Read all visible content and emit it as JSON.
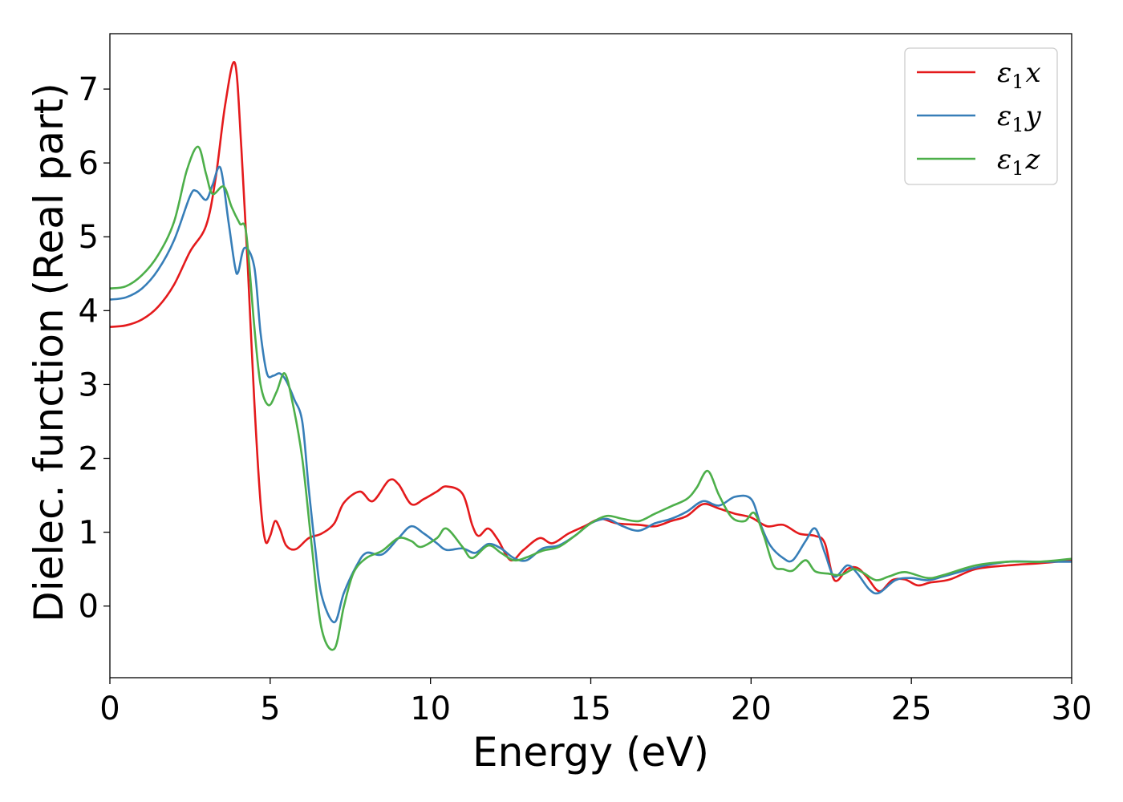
{
  "chart_data": {
    "type": "line",
    "title": "",
    "xlabel": "Energy (eV)",
    "ylabel": "Dielec. function (Real part)",
    "xlim": [
      0,
      30
    ],
    "ylim": [
      -0.97,
      7.75
    ],
    "xticks": [
      0,
      5,
      10,
      15,
      20,
      25,
      30
    ],
    "yticks": [
      0,
      1,
      2,
      3,
      4,
      5,
      6,
      7
    ],
    "grid": false,
    "legend_position": "top-right",
    "series": [
      {
        "name_base": "ε",
        "name_sub": "1",
        "name_var": "x",
        "color": "#e41a1c",
        "points": [
          [
            0,
            3.78
          ],
          [
            0.5,
            3.8
          ],
          [
            1,
            3.88
          ],
          [
            1.5,
            4.05
          ],
          [
            2,
            4.35
          ],
          [
            2.5,
            4.8
          ],
          [
            3,
            5.15
          ],
          [
            3.3,
            5.8
          ],
          [
            3.6,
            6.8
          ],
          [
            3.9,
            7.35
          ],
          [
            4.1,
            6.2
          ],
          [
            4.3,
            4.6
          ],
          [
            4.5,
            2.8
          ],
          [
            4.7,
            1.4
          ],
          [
            4.85,
            0.88
          ],
          [
            5,
            0.95
          ],
          [
            5.15,
            1.15
          ],
          [
            5.3,
            1.05
          ],
          [
            5.5,
            0.82
          ],
          [
            5.8,
            0.77
          ],
          [
            6.2,
            0.92
          ],
          [
            6.6,
            0.98
          ],
          [
            7,
            1.12
          ],
          [
            7.3,
            1.4
          ],
          [
            7.8,
            1.55
          ],
          [
            8.2,
            1.42
          ],
          [
            8.7,
            1.7
          ],
          [
            9,
            1.65
          ],
          [
            9.4,
            1.38
          ],
          [
            9.8,
            1.45
          ],
          [
            10.2,
            1.55
          ],
          [
            10.5,
            1.62
          ],
          [
            11,
            1.52
          ],
          [
            11.3,
            1.1
          ],
          [
            11.5,
            0.95
          ],
          [
            11.8,
            1.05
          ],
          [
            12.1,
            0.9
          ],
          [
            12.5,
            0.62
          ],
          [
            12.9,
            0.76
          ],
          [
            13.4,
            0.92
          ],
          [
            13.8,
            0.85
          ],
          [
            14.3,
            0.98
          ],
          [
            14.8,
            1.08
          ],
          [
            15.3,
            1.18
          ],
          [
            15.8,
            1.12
          ],
          [
            16.5,
            1.1
          ],
          [
            17,
            1.08
          ],
          [
            17.5,
            1.15
          ],
          [
            18,
            1.22
          ],
          [
            18.5,
            1.38
          ],
          [
            19,
            1.32
          ],
          [
            19.5,
            1.25
          ],
          [
            20,
            1.2
          ],
          [
            20.5,
            1.08
          ],
          [
            21,
            1.1
          ],
          [
            21.5,
            0.98
          ],
          [
            22,
            0.95
          ],
          [
            22.3,
            0.85
          ],
          [
            22.6,
            0.35
          ],
          [
            23,
            0.5
          ],
          [
            23.3,
            0.52
          ],
          [
            23.6,
            0.4
          ],
          [
            24,
            0.2
          ],
          [
            24.4,
            0.35
          ],
          [
            24.8,
            0.36
          ],
          [
            25.2,
            0.28
          ],
          [
            25.6,
            0.32
          ],
          [
            26.2,
            0.36
          ],
          [
            27,
            0.5
          ],
          [
            28,
            0.55
          ],
          [
            29,
            0.58
          ],
          [
            30,
            0.62
          ]
        ]
      },
      {
        "name_base": "ε",
        "name_sub": "1",
        "name_var": "y",
        "color": "#377eb8",
        "points": [
          [
            0,
            4.15
          ],
          [
            0.5,
            4.18
          ],
          [
            1,
            4.3
          ],
          [
            1.5,
            4.55
          ],
          [
            2,
            4.95
          ],
          [
            2.5,
            5.55
          ],
          [
            2.7,
            5.62
          ],
          [
            3,
            5.5
          ],
          [
            3.2,
            5.7
          ],
          [
            3.45,
            5.93
          ],
          [
            3.7,
            5.2
          ],
          [
            3.9,
            4.6
          ],
          [
            4,
            4.52
          ],
          [
            4.2,
            4.85
          ],
          [
            4.5,
            4.6
          ],
          [
            4.7,
            3.7
          ],
          [
            4.9,
            3.15
          ],
          [
            5.1,
            3.12
          ],
          [
            5.3,
            3.15
          ],
          [
            5.5,
            3.05
          ],
          [
            5.75,
            2.8
          ],
          [
            6,
            2.5
          ],
          [
            6.2,
            1.6
          ],
          [
            6.4,
            0.8
          ],
          [
            6.6,
            0.15
          ],
          [
            7,
            -0.22
          ],
          [
            7.3,
            0.18
          ],
          [
            7.7,
            0.55
          ],
          [
            8,
            0.72
          ],
          [
            8.5,
            0.7
          ],
          [
            9,
            0.92
          ],
          [
            9.4,
            1.08
          ],
          [
            9.8,
            0.98
          ],
          [
            10.2,
            0.85
          ],
          [
            10.5,
            0.76
          ],
          [
            11,
            0.78
          ],
          [
            11.4,
            0.72
          ],
          [
            11.8,
            0.84
          ],
          [
            12.2,
            0.78
          ],
          [
            12.6,
            0.65
          ],
          [
            13,
            0.62
          ],
          [
            13.5,
            0.78
          ],
          [
            14,
            0.82
          ],
          [
            14.5,
            0.95
          ],
          [
            15,
            1.12
          ],
          [
            15.5,
            1.18
          ],
          [
            16,
            1.08
          ],
          [
            16.5,
            1.02
          ],
          [
            17,
            1.12
          ],
          [
            17.5,
            1.18
          ],
          [
            18,
            1.28
          ],
          [
            18.5,
            1.42
          ],
          [
            19,
            1.36
          ],
          [
            19.5,
            1.48
          ],
          [
            20,
            1.45
          ],
          [
            20.3,
            1.1
          ],
          [
            20.6,
            0.82
          ],
          [
            21,
            0.65
          ],
          [
            21.3,
            0.62
          ],
          [
            21.7,
            0.88
          ],
          [
            22,
            1.05
          ],
          [
            22.3,
            0.72
          ],
          [
            22.6,
            0.4
          ],
          [
            23,
            0.55
          ],
          [
            23.3,
            0.45
          ],
          [
            23.7,
            0.22
          ],
          [
            24,
            0.18
          ],
          [
            24.5,
            0.35
          ],
          [
            25,
            0.38
          ],
          [
            25.5,
            0.35
          ],
          [
            26,
            0.4
          ],
          [
            27,
            0.52
          ],
          [
            28,
            0.6
          ],
          [
            29,
            0.6
          ],
          [
            30,
            0.6
          ]
        ]
      },
      {
        "name_base": "ε",
        "name_sub": "1",
        "name_var": "z",
        "color": "#4daf4a",
        "points": [
          [
            0,
            4.3
          ],
          [
            0.5,
            4.33
          ],
          [
            1,
            4.48
          ],
          [
            1.5,
            4.75
          ],
          [
            2,
            5.2
          ],
          [
            2.4,
            5.9
          ],
          [
            2.75,
            6.22
          ],
          [
            3,
            5.85
          ],
          [
            3.2,
            5.58
          ],
          [
            3.55,
            5.68
          ],
          [
            3.8,
            5.4
          ],
          [
            4.05,
            5.18
          ],
          [
            4.25,
            5.05
          ],
          [
            4.5,
            3.8
          ],
          [
            4.7,
            3.0
          ],
          [
            4.95,
            2.72
          ],
          [
            5.2,
            2.9
          ],
          [
            5.45,
            3.15
          ],
          [
            5.7,
            2.75
          ],
          [
            6,
            2.0
          ],
          [
            6.3,
            0.8
          ],
          [
            6.6,
            -0.3
          ],
          [
            7,
            -0.58
          ],
          [
            7.3,
            0.0
          ],
          [
            7.6,
            0.45
          ],
          [
            8,
            0.65
          ],
          [
            8.5,
            0.75
          ],
          [
            9,
            0.92
          ],
          [
            9.4,
            0.88
          ],
          [
            9.7,
            0.8
          ],
          [
            10.2,
            0.92
          ],
          [
            10.5,
            1.05
          ],
          [
            11,
            0.8
          ],
          [
            11.3,
            0.65
          ],
          [
            11.8,
            0.82
          ],
          [
            12.2,
            0.72
          ],
          [
            12.6,
            0.62
          ],
          [
            13,
            0.66
          ],
          [
            13.5,
            0.75
          ],
          [
            14,
            0.8
          ],
          [
            14.5,
            0.95
          ],
          [
            15,
            1.12
          ],
          [
            15.5,
            1.22
          ],
          [
            16,
            1.18
          ],
          [
            16.5,
            1.15
          ],
          [
            17,
            1.25
          ],
          [
            17.5,
            1.35
          ],
          [
            18,
            1.45
          ],
          [
            18.3,
            1.6
          ],
          [
            18.65,
            1.83
          ],
          [
            19,
            1.5
          ],
          [
            19.4,
            1.2
          ],
          [
            19.8,
            1.15
          ],
          [
            20.1,
            1.26
          ],
          [
            20.4,
            0.95
          ],
          [
            20.7,
            0.55
          ],
          [
            21,
            0.5
          ],
          [
            21.3,
            0.48
          ],
          [
            21.7,
            0.62
          ],
          [
            22,
            0.47
          ],
          [
            22.4,
            0.44
          ],
          [
            22.8,
            0.42
          ],
          [
            23.2,
            0.5
          ],
          [
            23.5,
            0.45
          ],
          [
            23.9,
            0.35
          ],
          [
            24.3,
            0.4
          ],
          [
            24.8,
            0.46
          ],
          [
            25.5,
            0.38
          ],
          [
            26,
            0.42
          ],
          [
            27,
            0.55
          ],
          [
            28,
            0.6
          ],
          [
            29,
            0.6
          ],
          [
            30,
            0.64
          ]
        ]
      }
    ]
  }
}
